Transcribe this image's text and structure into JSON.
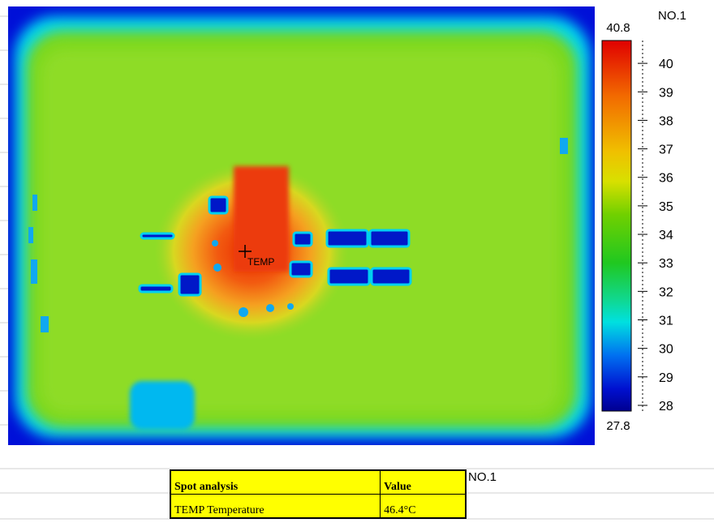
{
  "image": {
    "marker_label": "TEMP"
  },
  "colorbar": {
    "label": "NO.1",
    "max": 40.8,
    "min": 27.8,
    "ticks": [
      28,
      29,
      30,
      31,
      32,
      33,
      34,
      35,
      36,
      37,
      38,
      39,
      40
    ]
  },
  "table": {
    "label": "NO.1",
    "header": [
      "Spot analysis",
      "Value"
    ],
    "rows": [
      [
        "TEMP Temperature",
        "46.4°C"
      ]
    ]
  }
}
